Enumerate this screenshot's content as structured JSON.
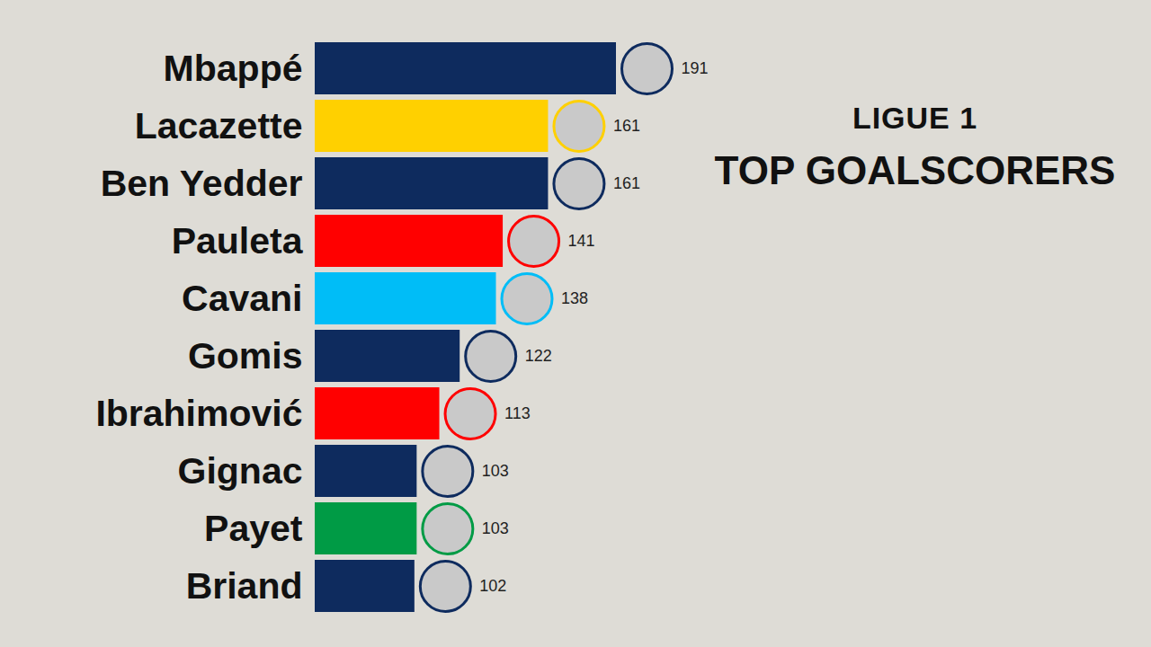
{
  "chart_data": {
    "type": "bar",
    "orientation": "horizontal",
    "title": "TOP GOALSCORERS",
    "subtitle": "LIGUE 1",
    "categories": [
      "Mbappé",
      "Lacazette",
      "Ben Yedder",
      "Pauleta",
      "Cavani",
      "Gomis",
      "Ibrahimović",
      "Gignac",
      "Payet",
      "Briand"
    ],
    "values": [
      191,
      161,
      161,
      141,
      138,
      122,
      113,
      103,
      103,
      102
    ],
    "colors": [
      "#0e2b5e",
      "#ffd000",
      "#0e2b5e",
      "#ff0000",
      "#00bdf7",
      "#0e2b5e",
      "#ff0000",
      "#0e2b5e",
      "#009b45",
      "#0e2b5e"
    ],
    "xlim": [
      58,
      191
    ],
    "xticks": [],
    "grid": false,
    "data_labels": true,
    "tick_labels": "y"
  }
}
